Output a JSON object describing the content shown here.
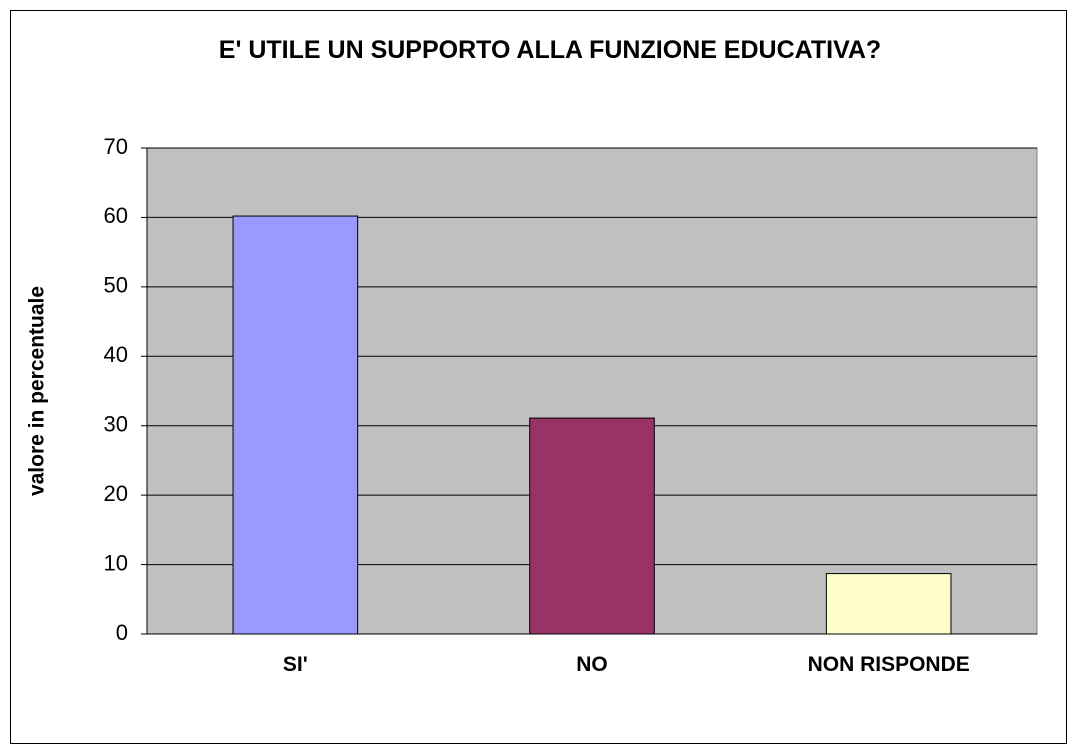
{
  "chart_data": {
    "type": "bar",
    "title": "E' UTILE UN SUPPORTO ALLA FUNZIONE EDUCATIVA?",
    "y_label": "valore in percentuale",
    "categories": [
      "SI'",
      "NO",
      "NON RISPONDE"
    ],
    "values": [
      60.2,
      31.1,
      8.7
    ],
    "colors": [
      "#9999ff",
      "#993366",
      "#ffffcc"
    ],
    "ylim": [
      0,
      70
    ],
    "yticks": [
      0,
      10,
      20,
      30,
      40,
      50,
      60,
      70
    ],
    "grid": true
  }
}
